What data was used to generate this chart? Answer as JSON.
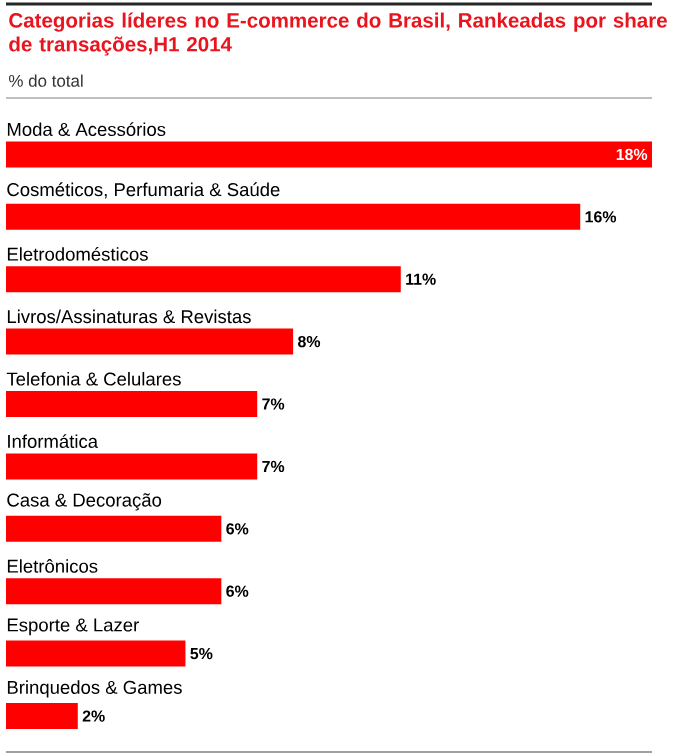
{
  "chart_data": {
    "type": "bar",
    "orientation": "horizontal",
    "title": "Categorias líderes no E-commerce do Brasil, Rankeadas por share de transações,H1 2014",
    "subtitle": "% do total",
    "categories": [
      "Moda & Acessórios",
      "Cosméticos, Perfumaria & Saúde",
      "Eletrodomésticos",
      "Livros/Assinaturas & Revistas",
      "Telefonia & Celulares",
      "Informática",
      "Casa & Decoração",
      "Eletrônicos",
      "Esporte & Lazer",
      "Brinquedos & Games"
    ],
    "values": [
      18,
      16,
      11,
      8,
      7,
      7,
      6,
      6,
      5,
      2
    ],
    "value_labels": [
      "18%",
      "16%",
      "11%",
      "8%",
      "7%",
      "7%",
      "6%",
      "6%",
      "5%",
      "2%"
    ],
    "color": "#ff0000"
  }
}
